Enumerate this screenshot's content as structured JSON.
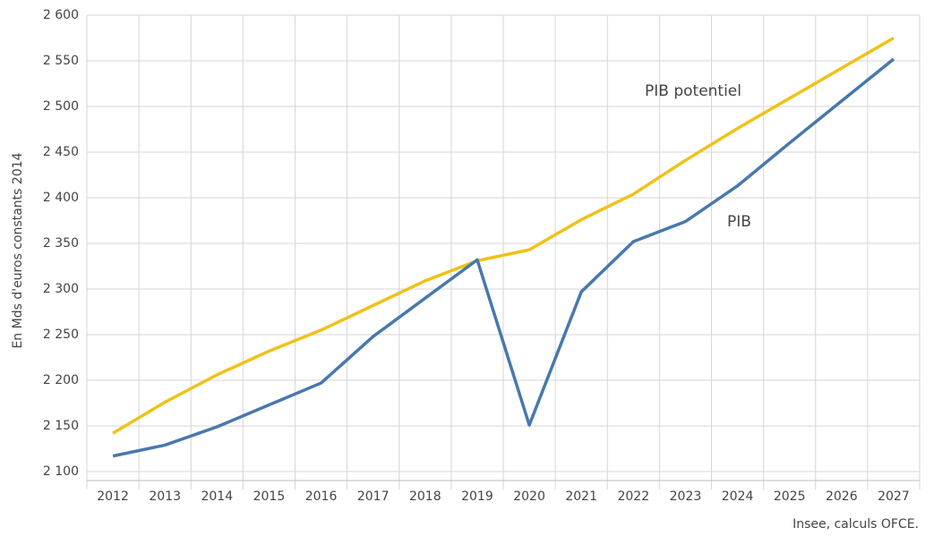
{
  "chart_data": {
    "type": "line",
    "y_label": "En Mds d'euros constants 2014",
    "source": "Insee, calculs OFCE.",
    "categories": [
      "2012",
      "2013",
      "2014",
      "2015",
      "2016",
      "2017",
      "2018",
      "2019",
      "2020",
      "2021",
      "2022",
      "2023",
      "2024",
      "2025",
      "2026",
      "2027"
    ],
    "series": [
      {
        "name": "PIB potentiel",
        "color": "#efc217",
        "values": [
          2142,
          2176,
          2206,
          2232,
          2255,
          2282,
          2309,
          2331,
          2343,
          2376,
          2404,
          2441,
          2476,
          2509,
          2542,
          2575
        ]
      },
      {
        "name": "PIB",
        "color": "#4878ad",
        "values": [
          2117,
          2129,
          2149,
          2173,
          2197,
          2248,
          2290,
          2332,
          2151,
          2297,
          2352,
          2374,
          2413,
          2460,
          2506,
          2552
        ]
      }
    ],
    "ylim": [
      2100,
      2600
    ],
    "yticks": [
      {
        "value": 2100,
        "label": "2 100"
      },
      {
        "value": 2150,
        "label": "2 150"
      },
      {
        "value": 2200,
        "label": "2 200"
      },
      {
        "value": 2250,
        "label": "2 250"
      },
      {
        "value": 2300,
        "label": "2 300"
      },
      {
        "value": 2350,
        "label": "2 350"
      },
      {
        "value": 2400,
        "label": "2 400"
      },
      {
        "value": 2450,
        "label": "2 450"
      },
      {
        "value": 2500,
        "label": "2 500"
      },
      {
        "value": 2550,
        "label": "2 550"
      },
      {
        "value": 2600,
        "label": "2 600"
      }
    ],
    "grid": true
  }
}
